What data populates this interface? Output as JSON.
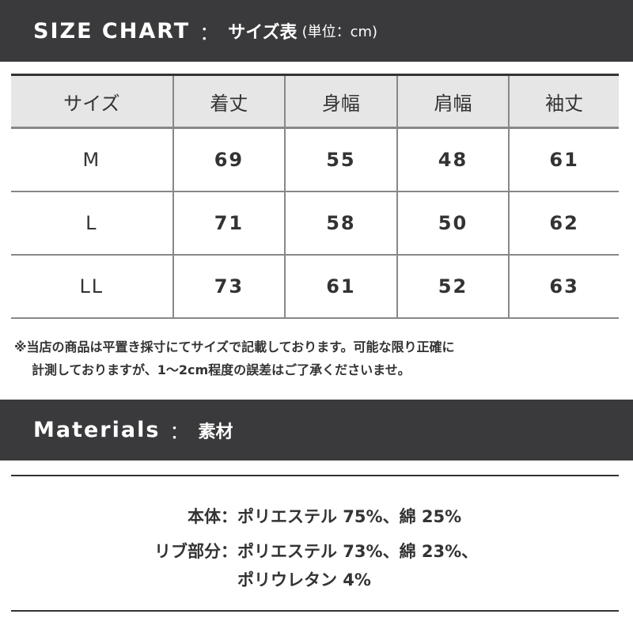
{
  "size_chart": {
    "title": "SIZE CHART",
    "separator": "：",
    "subtitle": "サイズ表",
    "unit": "(単位：cm)",
    "headers": [
      "サイズ",
      "着丈",
      "身幅",
      "肩幅",
      "袖丈"
    ],
    "rows": [
      [
        "M",
        "69",
        "55",
        "48",
        "61"
      ],
      [
        "L",
        "71",
        "58",
        "50",
        "62"
      ],
      [
        "LL",
        "73",
        "61",
        "52",
        "63"
      ]
    ]
  },
  "note": {
    "line1": "※当店の商品は平置き採寸にてサイズで記載しております。可能な限り正確に",
    "line2": "計測しておりますが、1〜2cm程度の誤差はご了承くださいませ。"
  },
  "materials": {
    "title": "Materials",
    "separator": "：",
    "subtitle": "素材",
    "items": [
      {
        "label": "本体：",
        "value": "ポリエステル 75%、綿 25%"
      },
      {
        "label": "リブ部分：",
        "value": "ポリエステル 73%、綿 23%、",
        "value2": "ポリウレタン 4%"
      }
    ]
  }
}
